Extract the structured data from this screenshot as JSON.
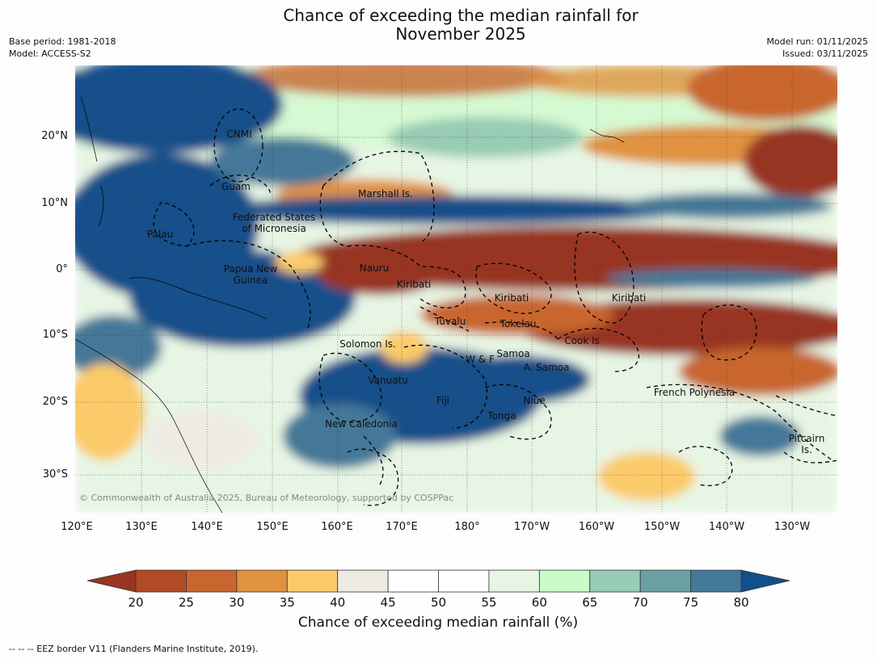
{
  "title": {
    "line1": "Chance of exceeding the median rainfall for",
    "line2": "November 2025"
  },
  "header_left": {
    "base_period": "Base period: 1981-2018",
    "model": "Model: ACCESS-S2"
  },
  "header_right": {
    "model_run": "Model run: 01/11/2025",
    "issued": "Issued: 03/11/2025"
  },
  "map": {
    "lat_labels": [
      "20°N",
      "10°N",
      "0°",
      "10°S",
      "20°S",
      "30°S"
    ],
    "lon_labels": [
      "120°E",
      "130°E",
      "140°E",
      "150°E",
      "160°E",
      "170°E",
      "180°",
      "170°W",
      "160°W",
      "150°W",
      "140°W",
      "130°W"
    ],
    "places": [
      "CNMI",
      "Guam",
      "Marshall Is.",
      "Federated States",
      "of Micronesia",
      "Palau",
      "Nauru",
      "Papua New",
      "Guinea",
      "Kiribati",
      "Kiribati",
      "Kiribati",
      "Tuvalu",
      "Tokelau",
      "Cook Is",
      "Solomon Is.",
      "W & F",
      "Samoa",
      "A. Samoa",
      "Vanuatu",
      "Fiji",
      "Niue",
      "Tonga",
      "French Polynesia",
      "New Caledonia",
      "Pitcairn",
      "Is."
    ],
    "copyright": "© Commonwealth of Australia 2025, Bureau of Meteorology, supported by COSPPac"
  },
  "colorbar": {
    "ticks": [
      "20",
      "25",
      "30",
      "35",
      "40",
      "45",
      "50",
      "55",
      "60",
      "65",
      "70",
      "75",
      "80"
    ],
    "colors": [
      "#983520",
      "#b04b26",
      "#c8662f",
      "#e0923f",
      "#fbcb6a",
      "#eeebe4",
      "#ffffff",
      "#ffffff",
      "#e7f5e4",
      "#c9fcc6",
      "#98ccb4",
      "#6aa0a4",
      "#447898",
      "#12508a"
    ],
    "label": "Chance of exceeding median rainfall (%)"
  },
  "footnote": "--  --  -- EEZ border V11 (Flanders Marine Institute, 2019)."
}
